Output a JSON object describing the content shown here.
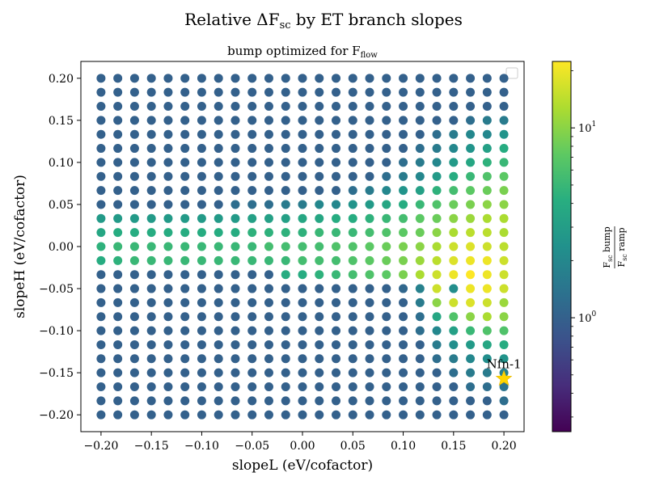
{
  "title": "Relative ΔF",
  "title_sub": "sc",
  "title_tail": " by ET branch slopes",
  "subtitle": "bump optimized for F",
  "subtitle_sub": "flow",
  "chart_data": {
    "type": "scatter",
    "xlabel": "slopeL (eV/cofactor)",
    "ylabel": "slopeH (eV/cofactor)",
    "xlim": [
      -0.22,
      0.22
    ],
    "ylim": [
      -0.22,
      0.22
    ],
    "xticks": [
      "−0.20",
      "−0.15",
      "−0.10",
      "−0.05",
      "0.00",
      "0.05",
      "0.10",
      "0.15",
      "0.20"
    ],
    "yticks": [
      "0.20",
      "0.15",
      "0.10",
      "0.05",
      "0.00",
      "−0.05",
      "−0.10",
      "−0.15",
      "−0.20"
    ],
    "xtick_values": [
      -0.2,
      -0.15,
      -0.1,
      -0.05,
      0.0,
      0.05,
      0.1,
      0.15,
      0.2
    ],
    "ytick_values": [
      0.2,
      0.15,
      0.1,
      0.05,
      0.0,
      -0.05,
      -0.1,
      -0.15,
      -0.2
    ],
    "grid": false,
    "legend": "top-right (empty)",
    "grid_points": {
      "x_start": -0.2,
      "x_end": 0.2,
      "nx": 25,
      "y_start": 0.2,
      "y_end": -0.2,
      "ny": 25
    },
    "values_note_rows_top_to_bottom": "log10 color values per point",
    "color_values": [
      [
        0,
        0,
        0,
        0,
        0,
        0,
        0,
        0,
        0,
        0,
        0,
        0,
        0,
        0,
        0,
        0,
        0,
        0,
        0,
        0,
        0,
        0,
        0,
        0,
        0
      ],
      [
        0,
        0,
        0,
        0,
        0,
        0,
        0,
        0,
        0,
        0,
        0,
        0,
        0,
        0,
        0,
        0,
        0,
        0,
        0,
        0,
        0,
        0,
        0,
        0,
        0
      ],
      [
        0,
        0,
        0,
        0,
        0,
        0,
        0,
        0,
        0,
        0,
        0,
        0,
        0,
        0,
        0,
        0,
        0,
        0,
        0,
        0,
        0,
        0,
        0,
        0,
        0
      ],
      [
        0,
        0,
        0,
        0,
        0,
        0,
        0,
        0,
        0,
        0,
        0,
        0,
        0,
        0,
        0,
        0,
        0,
        0,
        0,
        0,
        0,
        0,
        0.1,
        0.2,
        0.2
      ],
      [
        0,
        0,
        0,
        0,
        0,
        0,
        0,
        0,
        0,
        0,
        0,
        0,
        0,
        0,
        0,
        0,
        0,
        0,
        0,
        0,
        0.1,
        0.2,
        0.3,
        0.3,
        0.4
      ],
      [
        0,
        0,
        0,
        0,
        0,
        0,
        0,
        0,
        0,
        0,
        0,
        0,
        0,
        0,
        0,
        0,
        0,
        0,
        0,
        0.1,
        0.2,
        0.3,
        0.4,
        0.5,
        0.6
      ],
      [
        0,
        0,
        0,
        0,
        0,
        0,
        0,
        0,
        0,
        0,
        0,
        0,
        0,
        0,
        0,
        0,
        0,
        0,
        0.1,
        0.2,
        0.3,
        0.45,
        0.55,
        0.65,
        0.7
      ],
      [
        0,
        0,
        0,
        0,
        0,
        0,
        0,
        0,
        0,
        0,
        0,
        0,
        0,
        0,
        0,
        0,
        0,
        0.1,
        0.2,
        0.3,
        0.45,
        0.6,
        0.7,
        0.8,
        0.85
      ],
      [
        0,
        0,
        0,
        0,
        0,
        0,
        0,
        0,
        0,
        0,
        0,
        0,
        0,
        0,
        0,
        0.1,
        0.2,
        0.3,
        0.4,
        0.5,
        0.65,
        0.75,
        0.85,
        0.9,
        0.95
      ],
      [
        0,
        0,
        0,
        0,
        0,
        0,
        0,
        0,
        0.1,
        0.1,
        0.1,
        0.2,
        0.2,
        0.3,
        0.3,
        0.4,
        0.45,
        0.55,
        0.6,
        0.7,
        0.8,
        0.9,
        0.95,
        1.0,
        1.0
      ],
      [
        0.45,
        0.45,
        0.45,
        0.45,
        0.45,
        0.45,
        0.45,
        0.45,
        0.45,
        0.5,
        0.5,
        0.5,
        0.55,
        0.55,
        0.6,
        0.6,
        0.65,
        0.7,
        0.75,
        0.85,
        0.9,
        1.0,
        1.05,
        1.1,
        1.1
      ],
      [
        0.55,
        0.6,
        0.6,
        0.6,
        0.6,
        0.6,
        0.6,
        0.6,
        0.6,
        0.65,
        0.65,
        0.65,
        0.65,
        0.7,
        0.7,
        0.7,
        0.75,
        0.8,
        0.85,
        0.9,
        1.0,
        1.1,
        1.15,
        1.15,
        1.1
      ],
      [
        0.65,
        0.7,
        0.7,
        0.7,
        0.7,
        0.7,
        0.7,
        0.7,
        0.7,
        0.7,
        0.75,
        0.75,
        0.75,
        0.75,
        0.8,
        0.8,
        0.85,
        0.9,
        0.95,
        1.0,
        1.1,
        1.2,
        1.25,
        1.2,
        1.15
      ],
      [
        0.6,
        0.65,
        0.7,
        0.7,
        0.7,
        0.7,
        0.7,
        0.7,
        0.7,
        0.7,
        0.7,
        0.7,
        0.75,
        0.75,
        0.75,
        0.8,
        0.85,
        0.9,
        0.95,
        1.05,
        1.15,
        1.25,
        1.3,
        1.3,
        1.2
      ],
      [
        0.0,
        0.0,
        0.0,
        0.0,
        0.0,
        0.0,
        0.0,
        0.0,
        0.0,
        0.0,
        0.0,
        0.6,
        0.6,
        0.65,
        0.7,
        0.75,
        0.8,
        0.85,
        0.95,
        1.1,
        1.2,
        1.3,
        1.35,
        1.3,
        1.2
      ],
      [
        0.0,
        0.0,
        0.0,
        0.0,
        0.0,
        0.0,
        0.0,
        0.0,
        0.0,
        0.0,
        0.0,
        0.0,
        0.0,
        0.0,
        0.0,
        0.0,
        0.0,
        0.0,
        0.05,
        0.25,
        1.2,
        0.35,
        1.3,
        1.3,
        1.2
      ],
      [
        0,
        0,
        0,
        0,
        0,
        0,
        0,
        0,
        0,
        0,
        0,
        0,
        0,
        0,
        0,
        0,
        0,
        0,
        0,
        0.2,
        1.0,
        1.2,
        1.25,
        1.2,
        1.05
      ],
      [
        0,
        0,
        0,
        0,
        0,
        0,
        0,
        0,
        0,
        0,
        0,
        0,
        0,
        0,
        0,
        0,
        0,
        0,
        0,
        0.1,
        0.55,
        0.8,
        1.0,
        1.1,
        1.0
      ],
      [
        0,
        0,
        0,
        0,
        0,
        0,
        0,
        0,
        0,
        0,
        0,
        0,
        0,
        0,
        0,
        0,
        0,
        0,
        0,
        0.1,
        0.3,
        0.5,
        0.7,
        0.8,
        0.8
      ],
      [
        0,
        0,
        0,
        0,
        0,
        0,
        0,
        0,
        0,
        0,
        0,
        0,
        0,
        0,
        0,
        0,
        0,
        0,
        0,
        0,
        0.2,
        0.35,
        0.45,
        0.55,
        0.6
      ],
      [
        0,
        0,
        0,
        0,
        0,
        0,
        0,
        0,
        0,
        0,
        0,
        0,
        0,
        0,
        0,
        0,
        0,
        0,
        0,
        0,
        0.1,
        0.2,
        0.3,
        0.35,
        0.4
      ],
      [
        0,
        0,
        0,
        0,
        0,
        0,
        0,
        0,
        0,
        0,
        0,
        0,
        0,
        0,
        0,
        0,
        0,
        0,
        0,
        0,
        0,
        0.1,
        0.2,
        0.2,
        0.25
      ],
      [
        0,
        0,
        0,
        0,
        0,
        0,
        0,
        0,
        0,
        0,
        0,
        0,
        0,
        0,
        0,
        0,
        0,
        0,
        0,
        0,
        0,
        0,
        0.1,
        0.1,
        0.15
      ],
      [
        0,
        0,
        0,
        0,
        0,
        0,
        0,
        0,
        0,
        0,
        0,
        0,
        0,
        0,
        0,
        0,
        0,
        0,
        0,
        0,
        0,
        0,
        0,
        0,
        0.1
      ],
      [
        0,
        0,
        0,
        0,
        0,
        0,
        0,
        0,
        0,
        0,
        0,
        0,
        0,
        0,
        0,
        0,
        0,
        0,
        0,
        0,
        0,
        0,
        0,
        0,
        0
      ]
    ],
    "colorbar": {
      "scale": "log",
      "range_log10": [
        -0.6,
        1.35
      ],
      "ticks": [
        {
          "base": "10",
          "exp": "1",
          "log10": 1
        },
        {
          "base": "10",
          "exp": "0",
          "log10": 0
        }
      ],
      "label_num_main": "F",
      "label_num_sub": "sc",
      "label_num_tail": " bump",
      "label_den_main": "F",
      "label_den_sub": "sc",
      "label_den_tail": " ramp",
      "colormap": "viridis"
    },
    "annotation": {
      "label": "Nfn-1",
      "x": 0.2,
      "y": -0.157,
      "marker": "star",
      "color": "#FFD700"
    }
  }
}
